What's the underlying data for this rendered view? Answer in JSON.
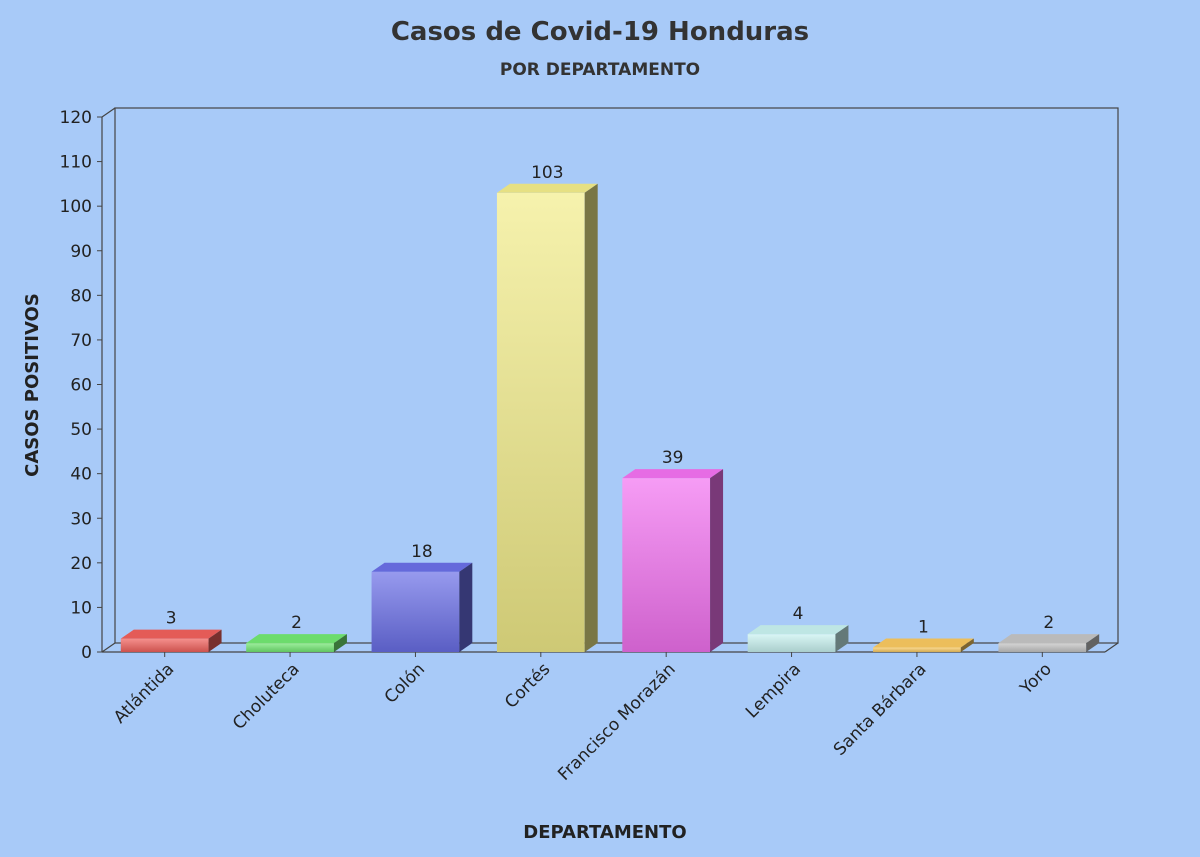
{
  "chart_data": {
    "type": "bar",
    "title": "Casos de Covid-19 Honduras",
    "subtitle": "POR DEPARTAMENTO",
    "xlabel": "DEPARTAMENTO",
    "ylabel": "CASOS POSITIVOS",
    "categories": [
      "Atlántida",
      "Choluteca",
      "Colón",
      "Cortés",
      "Francisco Morazán",
      "Lempira",
      "Santa Bárbara",
      "Yoro"
    ],
    "values": [
      3,
      2,
      18,
      103,
      39,
      4,
      1,
      2
    ],
    "data_labels": [
      "3",
      "2",
      "18",
      "103",
      "39",
      "4",
      "1",
      "2"
    ],
    "ylim": [
      0,
      120
    ],
    "yticks": [
      0,
      10,
      20,
      30,
      40,
      50,
      60,
      70,
      80,
      90,
      100,
      110,
      120
    ],
    "bar_colors": [
      "#f0605c",
      "#72e872",
      "#6a6ee6",
      "#f2ec8a",
      "#f272f0",
      "#c8f2f0",
      "#f8c860",
      "#c4c4c4"
    ],
    "background_color": "#a8caf8",
    "grid": false,
    "legend": "none",
    "style": "3d"
  }
}
